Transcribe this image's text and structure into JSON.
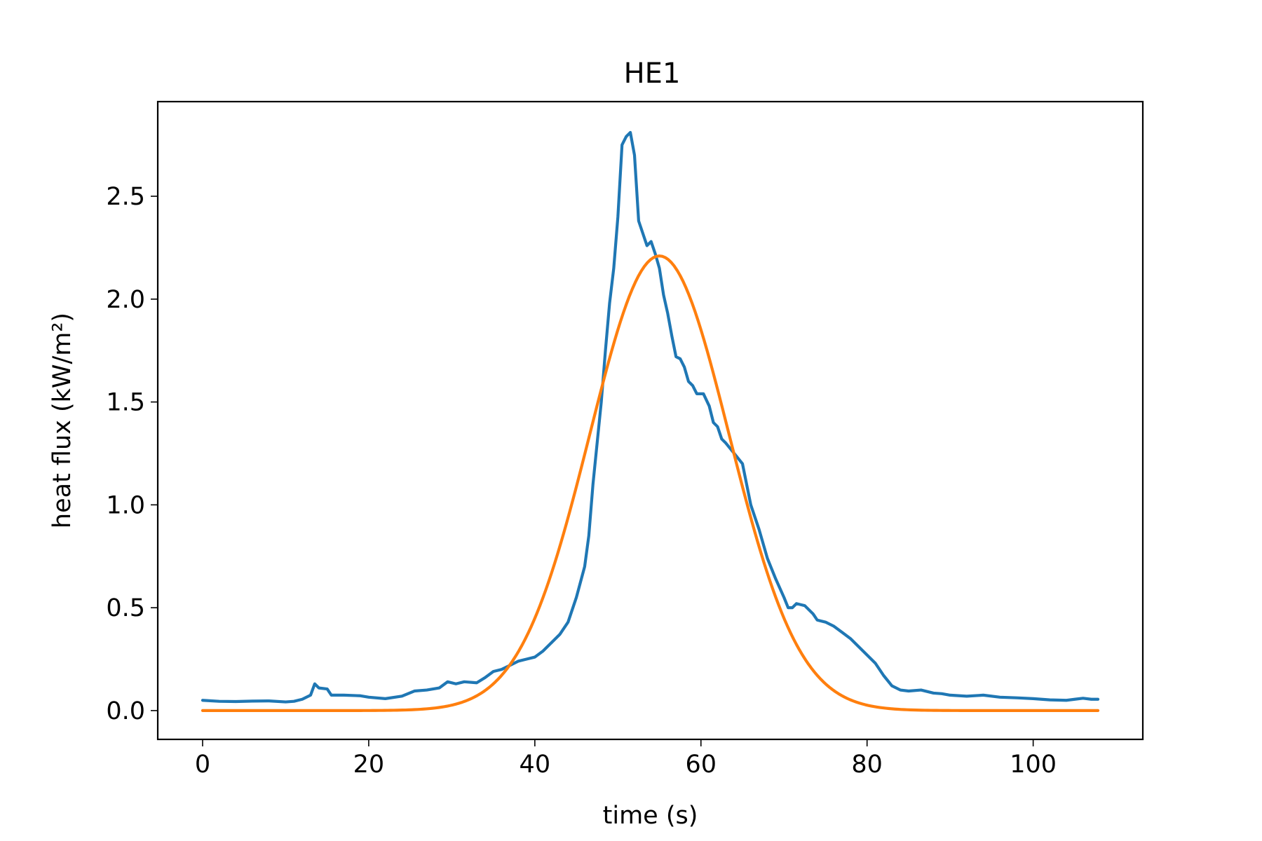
{
  "chart_data": {
    "type": "line",
    "title": "HE1",
    "xlabel": "time (s)",
    "ylabel": "heat flux (kW/m²)",
    "xlim": [
      -5.4,
      113.2
    ],
    "ylim": [
      -0.14,
      2.96
    ],
    "xticks": [
      {
        "value": 0,
        "label": "0"
      },
      {
        "value": 20,
        "label": "20"
      },
      {
        "value": 40,
        "label": "40"
      },
      {
        "value": 60,
        "label": "60"
      },
      {
        "value": 80,
        "label": "80"
      },
      {
        "value": 100,
        "label": "100"
      }
    ],
    "yticks": [
      {
        "value": 0.0,
        "label": "0.0"
      },
      {
        "value": 0.5,
        "label": "0.5"
      },
      {
        "value": 1.0,
        "label": "1.0"
      },
      {
        "value": 1.5,
        "label": "1.5"
      },
      {
        "value": 2.0,
        "label": "2.0"
      },
      {
        "value": 2.5,
        "label": "2.5"
      }
    ],
    "grid": false,
    "legend": "none",
    "series": [
      {
        "color": "#1f77b4",
        "points": [
          [
            0,
            0.05
          ],
          [
            2,
            0.045
          ],
          [
            4,
            0.044
          ],
          [
            6,
            0.046
          ],
          [
            8,
            0.047
          ],
          [
            10,
            0.042
          ],
          [
            11,
            0.045
          ],
          [
            12,
            0.055
          ],
          [
            13,
            0.075
          ],
          [
            13.5,
            0.13
          ],
          [
            14,
            0.11
          ],
          [
            15,
            0.105
          ],
          [
            15.5,
            0.075
          ],
          [
            17,
            0.075
          ],
          [
            19,
            0.072
          ],
          [
            20,
            0.065
          ],
          [
            22,
            0.058
          ],
          [
            24,
            0.07
          ],
          [
            25.5,
            0.095
          ],
          [
            27,
            0.1
          ],
          [
            28.5,
            0.11
          ],
          [
            29.5,
            0.14
          ],
          [
            30.5,
            0.13
          ],
          [
            31.5,
            0.14
          ],
          [
            33,
            0.135
          ],
          [
            34,
            0.16
          ],
          [
            35,
            0.19
          ],
          [
            36,
            0.2
          ],
          [
            37,
            0.22
          ],
          [
            38,
            0.24
          ],
          [
            39,
            0.25
          ],
          [
            40,
            0.26
          ],
          [
            41,
            0.29
          ],
          [
            42,
            0.33
          ],
          [
            43,
            0.37
          ],
          [
            44,
            0.43
          ],
          [
            45,
            0.55
          ],
          [
            46,
            0.7
          ],
          [
            46.5,
            0.85
          ],
          [
            47,
            1.1
          ],
          [
            47.5,
            1.3
          ],
          [
            48,
            1.5
          ],
          [
            48.5,
            1.75
          ],
          [
            49,
            1.98
          ],
          [
            49.5,
            2.15
          ],
          [
            50,
            2.4
          ],
          [
            50.5,
            2.75
          ],
          [
            51,
            2.79
          ],
          [
            51.5,
            2.81
          ],
          [
            52,
            2.7
          ],
          [
            52.5,
            2.38
          ],
          [
            53,
            2.32
          ],
          [
            53.5,
            2.26
          ],
          [
            54,
            2.28
          ],
          [
            54.5,
            2.22
          ],
          [
            55,
            2.15
          ],
          [
            55.5,
            2.02
          ],
          [
            56,
            1.93
          ],
          [
            56.5,
            1.82
          ],
          [
            57,
            1.72
          ],
          [
            57.5,
            1.71
          ],
          [
            58,
            1.67
          ],
          [
            58.5,
            1.6
          ],
          [
            59,
            1.58
          ],
          [
            59.5,
            1.54
          ],
          [
            60.3,
            1.54
          ],
          [
            61,
            1.48
          ],
          [
            61.5,
            1.4
          ],
          [
            62,
            1.38
          ],
          [
            62.5,
            1.32
          ],
          [
            63,
            1.3
          ],
          [
            64,
            1.25
          ],
          [
            65,
            1.2
          ],
          [
            65.5,
            1.1
          ],
          [
            66,
            1.0
          ],
          [
            67,
            0.88
          ],
          [
            68,
            0.74
          ],
          [
            69,
            0.64
          ],
          [
            70,
            0.55
          ],
          [
            70.5,
            0.5
          ],
          [
            71,
            0.5
          ],
          [
            71.5,
            0.52
          ],
          [
            72.5,
            0.51
          ],
          [
            73.5,
            0.47
          ],
          [
            74,
            0.44
          ],
          [
            75,
            0.43
          ],
          [
            76,
            0.41
          ],
          [
            77,
            0.38
          ],
          [
            78,
            0.35
          ],
          [
            79,
            0.31
          ],
          [
            80,
            0.27
          ],
          [
            81,
            0.23
          ],
          [
            82,
            0.17
          ],
          [
            83,
            0.12
          ],
          [
            84,
            0.1
          ],
          [
            85,
            0.095
          ],
          [
            86.5,
            0.1
          ],
          [
            88,
            0.085
          ],
          [
            89,
            0.082
          ],
          [
            90,
            0.075
          ],
          [
            92,
            0.07
          ],
          [
            94,
            0.075
          ],
          [
            96,
            0.065
          ],
          [
            98,
            0.062
          ],
          [
            100,
            0.058
          ],
          [
            102,
            0.052
          ],
          [
            104,
            0.05
          ],
          [
            105,
            0.055
          ],
          [
            106,
            0.06
          ],
          [
            107,
            0.055
          ],
          [
            107.8,
            0.055
          ]
        ]
      },
      {
        "color": "#ff7f0e",
        "curve": "gaussian",
        "amplitude": 2.21,
        "center": 55.0,
        "sigma": 8.4,
        "x_range": [
          0,
          107.8
        ]
      }
    ]
  }
}
